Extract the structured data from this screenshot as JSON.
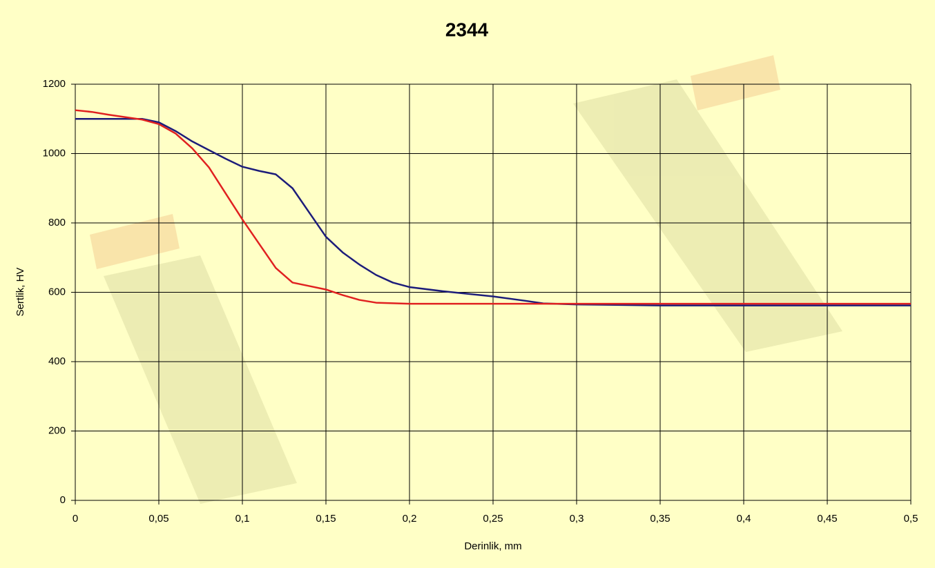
{
  "chart_data": {
    "type": "line",
    "title": "2344",
    "x_label": "Derinlik, mm",
    "y_label": "Sertlik, HV",
    "xlim": [
      0,
      0.5
    ],
    "ylim": [
      0,
      1200
    ],
    "xticks": [
      0,
      {
        "value": 0.05,
        "label": "0,05"
      },
      {
        "value": 0.1,
        "label": "0,1"
      },
      {
        "value": 0.15,
        "label": "0,15"
      },
      {
        "value": 0.2,
        "label": "0,2"
      },
      {
        "value": 0.25,
        "label": "0,25"
      },
      {
        "value": 0.3,
        "label": "0,3"
      },
      {
        "value": 0.35,
        "label": "0,35"
      },
      {
        "value": 0.4,
        "label": "0,4"
      },
      {
        "value": 0.45,
        "label": "0,45"
      },
      {
        "value": 0.5,
        "label": "0,5"
      }
    ],
    "yticks": [
      0,
      200,
      400,
      600,
      800,
      1000,
      1200
    ],
    "grid": true,
    "series": [
      {
        "color": "#1c1c7a",
        "x": [
          0,
          0.04,
          0.05,
          0.06,
          0.07,
          0.08,
          0.09,
          0.1,
          0.11,
          0.12,
          0.13,
          0.14,
          0.15,
          0.16,
          0.17,
          0.18,
          0.19,
          0.2,
          0.22,
          0.25,
          0.27,
          0.28,
          0.3,
          0.35,
          0.4,
          0.5
        ],
        "values": [
          1100,
          1100,
          1090,
          1065,
          1035,
          1010,
          985,
          962,
          950,
          940,
          900,
          830,
          760,
          715,
          680,
          650,
          628,
          615,
          603,
          588,
          575,
          568,
          565,
          562,
          562,
          562
        ]
      },
      {
        "color": "#e02020",
        "x": [
          0,
          0.01,
          0.02,
          0.03,
          0.04,
          0.05,
          0.06,
          0.07,
          0.08,
          0.09,
          0.1,
          0.11,
          0.12,
          0.13,
          0.14,
          0.15,
          0.16,
          0.17,
          0.18,
          0.2,
          0.3,
          0.5
        ],
        "values": [
          1125,
          1120,
          1112,
          1105,
          1098,
          1085,
          1058,
          1015,
          960,
          885,
          810,
          740,
          670,
          628,
          618,
          608,
          592,
          578,
          570,
          567,
          567,
          567
        ]
      }
    ]
  }
}
